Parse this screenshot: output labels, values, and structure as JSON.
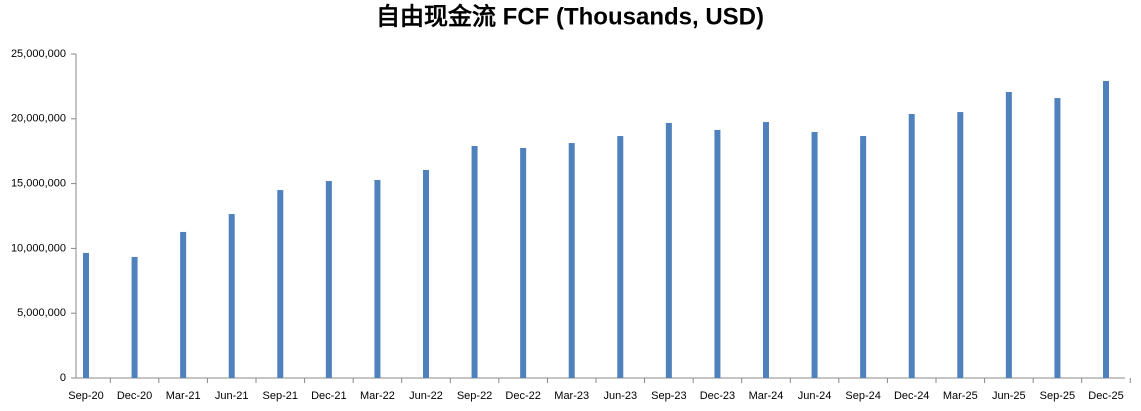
{
  "chart_data": {
    "type": "bar",
    "title": "自由现金流 FCF (Thousands, USD)",
    "categories": [
      "Sep-20",
      "Dec-20",
      "Mar-21",
      "Jun-21",
      "Sep-21",
      "Dec-21",
      "Mar-22",
      "Jun-22",
      "Sep-22",
      "Dec-22",
      "Mar-23",
      "Jun-23",
      "Sep-23",
      "Dec-23",
      "Mar-24",
      "Jun-24",
      "Sep-24",
      "Dec-24",
      "Mar-25",
      "Jun-25",
      "Sep-25",
      "Dec-25"
    ],
    "values": [
      9650000,
      9340000,
      11270000,
      12650000,
      14500000,
      15200000,
      15280000,
      16050000,
      17900000,
      17750000,
      18130000,
      18670000,
      19680000,
      19140000,
      19750000,
      18980000,
      18670000,
      20370000,
      20520000,
      22070000,
      21600000,
      22920000
    ],
    "color": "#4f81bd",
    "ylim": [
      0,
      25000000
    ],
    "yticks": [
      0,
      {
        "value": 5000000,
        "label": "5,000,000"
      },
      {
        "value": 10000000,
        "label": "10,000,000"
      },
      {
        "value": 15000000,
        "label": "15,000,000"
      },
      {
        "value": 20000000,
        "label": "20,000,000"
      },
      {
        "value": 25000000,
        "label": "25,000,000"
      }
    ],
    "grid": false
  }
}
